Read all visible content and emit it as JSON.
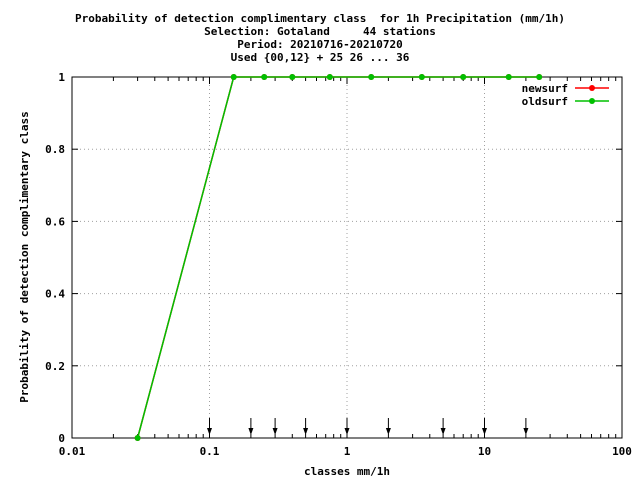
{
  "chart_data": {
    "type": "line",
    "title_lines": [
      "Probability of detection complimentary class  for 1h Precipitation (mm/1h)",
      "Selection: Gotaland     44 stations",
      "Period: 20210716-20210720",
      "Used {00,12} + 25 26 ... 36"
    ],
    "xlabel": "classes mm/1h",
    "ylabel": "Probability of detection complimentary class",
    "xscale": "log",
    "xlim": [
      0.01,
      100
    ],
    "ylim": [
      0,
      1
    ],
    "x_ticks": [
      {
        "value": 0.01,
        "label": "0.01"
      },
      {
        "value": 0.1,
        "label": "0.1"
      },
      {
        "value": 1,
        "label": "1"
      },
      {
        "value": 10,
        "label": "10"
      },
      {
        "value": 100,
        "label": "100"
      }
    ],
    "y_ticks": [
      {
        "value": 0,
        "label": "0"
      },
      {
        "value": 0.2,
        "label": "0.2"
      },
      {
        "value": 0.4,
        "label": "0.4"
      },
      {
        "value": 0.6,
        "label": "0.6"
      },
      {
        "value": 0.8,
        "label": "0.8"
      },
      {
        "value": 1,
        "label": "1"
      }
    ],
    "grid": true,
    "legend_position": "top-right",
    "series": [
      {
        "name": "newsurf",
        "color": "#ff0000",
        "x": [
          0.03,
          0.15,
          0.25,
          0.4,
          0.75,
          1.5,
          3.5,
          7,
          15,
          25
        ],
        "y": [
          0,
          1,
          1,
          1,
          1,
          1,
          1,
          1,
          1,
          1
        ]
      },
      {
        "name": "oldsurf",
        "color": "#00c000",
        "x": [
          0.03,
          0.15,
          0.25,
          0.4,
          0.75,
          1.5,
          3.5,
          7,
          15,
          25
        ],
        "y": [
          0,
          1,
          1,
          1,
          1,
          1,
          1,
          1,
          1,
          1
        ]
      }
    ],
    "class_arrows": [
      0.1,
      0.2,
      0.3,
      0.5,
      1,
      2,
      5,
      10,
      20
    ]
  }
}
